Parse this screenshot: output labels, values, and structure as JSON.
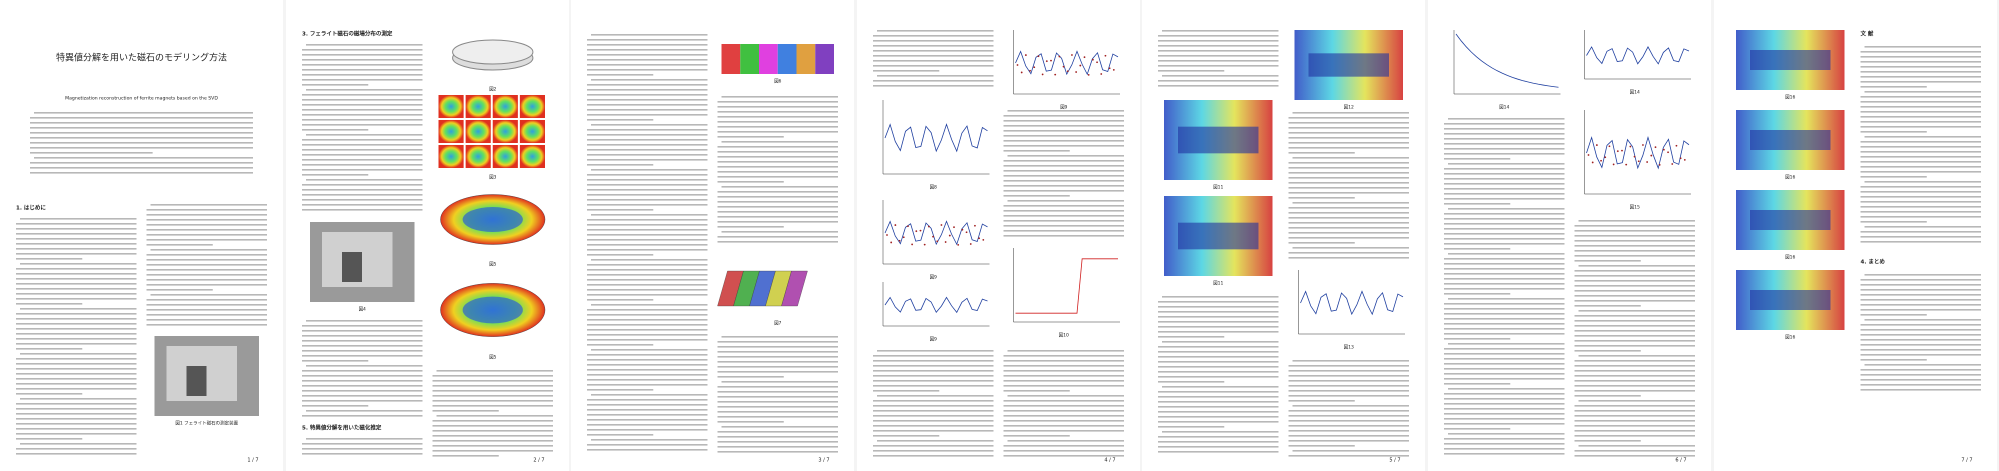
{
  "pages": [
    {
      "number": "1 / 7",
      "title": "特異値分解を用いた磁石のモデリング方法",
      "title_en": "Magnetization reconstruction of ferrite magnets based on the SVD",
      "headings": [
        "1. はじめに"
      ],
      "captions": [
        "図1 フェライト磁石の測定装置"
      ]
    },
    {
      "number": "2 / 7",
      "headings": [
        "3. フェライト磁石の磁場分布の測定",
        "5. 特異値分解を用いた磁化推定"
      ],
      "captions": [
        "図2",
        "図3",
        "図4",
        "図5"
      ]
    },
    {
      "number": "3 / 7",
      "headings": [],
      "captions": [
        "図6",
        "図7"
      ]
    },
    {
      "number": "4 / 7",
      "headings": [],
      "captions": [
        "図8",
        "図9",
        "図10"
      ]
    },
    {
      "number": "5 / 7",
      "headings": [],
      "captions": [
        "図11",
        "図12",
        "図13"
      ]
    },
    {
      "number": "6 / 7",
      "headings": [],
      "captions": [
        "図14",
        "図15"
      ]
    },
    {
      "number": "7 / 7",
      "headings": [
        "4. まとめ",
        "文 献"
      ],
      "captions": [
        "図16"
      ]
    }
  ]
}
